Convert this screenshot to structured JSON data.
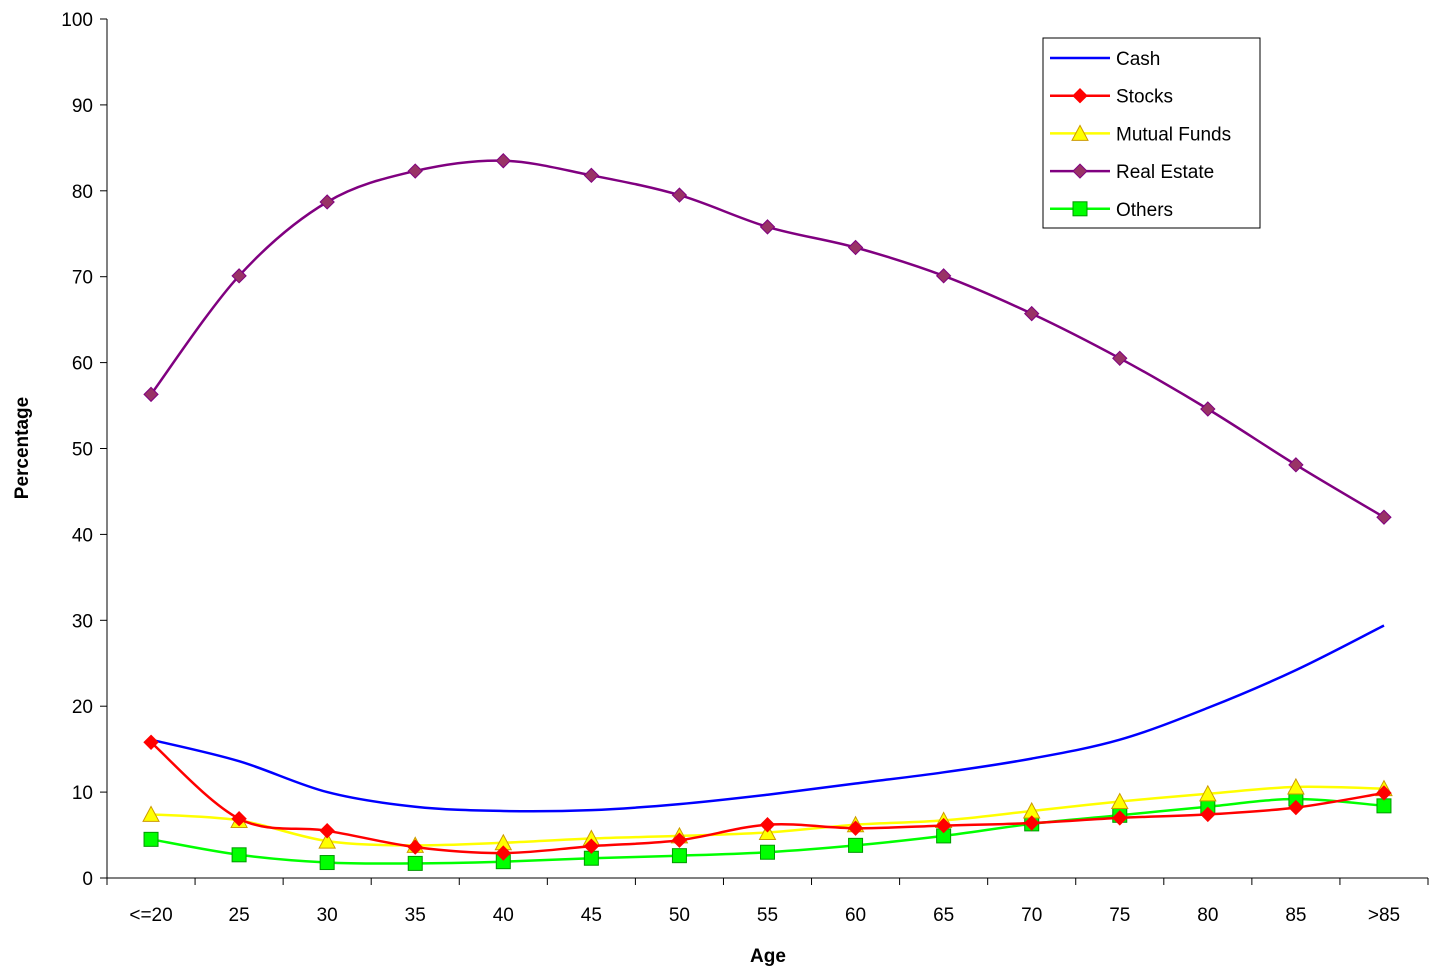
{
  "chart_data": {
    "type": "line",
    "title": "",
    "xlabel": "Age",
    "ylabel": "Percentage",
    "categories": [
      "<=20",
      "25",
      "30",
      "35",
      "40",
      "45",
      "50",
      "55",
      "60",
      "65",
      "70",
      "75",
      "80",
      "85",
      ">85"
    ],
    "ylim": [
      0,
      100
    ],
    "yticks": [
      0,
      10,
      20,
      30,
      40,
      50,
      60,
      70,
      80,
      90,
      100
    ],
    "grid": false,
    "legend_position": "top-right",
    "series": [
      {
        "name": "Cash",
        "color": "#0000FF",
        "marker": "none",
        "values": [
          16.1,
          13.6,
          10.0,
          8.3,
          7.8,
          7.9,
          8.6,
          9.7,
          11.0,
          12.3,
          13.9,
          16.1,
          19.8,
          24.2,
          29.4
        ]
      },
      {
        "name": "Stocks",
        "color": "#FF0000",
        "marker": "diamond",
        "markerFill": "#FF0000",
        "values": [
          15.8,
          6.9,
          5.5,
          3.6,
          2.9,
          3.7,
          4.4,
          6.2,
          5.8,
          6.1,
          6.4,
          7.0,
          7.4,
          8.2,
          9.9
        ]
      },
      {
        "name": "Mutual Funds",
        "color": "#FFFF00",
        "marker": "triangle",
        "markerFill": "#FFFF00",
        "values": [
          7.4,
          6.7,
          4.3,
          3.8,
          4.1,
          4.6,
          4.9,
          5.3,
          6.2,
          6.7,
          7.8,
          8.9,
          9.8,
          10.6,
          10.4
        ]
      },
      {
        "name": "Real Estate",
        "color": "#800080",
        "marker": "diamond",
        "markerFill": "#993366",
        "values": [
          56.3,
          70.1,
          78.7,
          82.3,
          83.5,
          81.8,
          79.5,
          75.8,
          73.4,
          70.1,
          65.7,
          60.5,
          54.6,
          48.1,
          42.0
        ]
      },
      {
        "name": "Others",
        "color": "#00FF00",
        "marker": "square",
        "markerFill": "#00FF00",
        "values": [
          4.5,
          2.7,
          1.8,
          1.7,
          1.9,
          2.3,
          2.6,
          3.0,
          3.8,
          4.9,
          6.3,
          7.3,
          8.3,
          9.2,
          8.4
        ]
      }
    ]
  }
}
